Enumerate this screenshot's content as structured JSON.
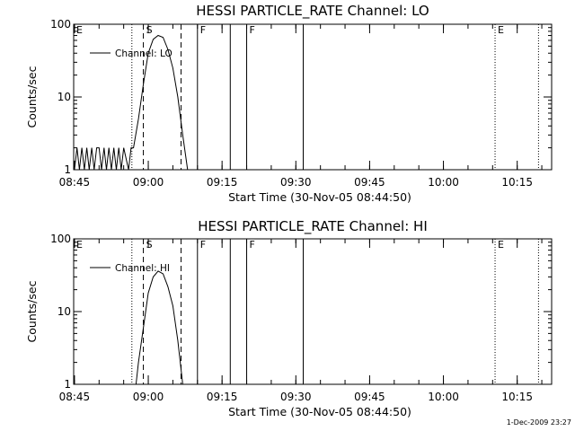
{
  "chart_data": [
    {
      "type": "line",
      "title": "HESSI PARTICLE_RATE Channel: LO",
      "xlabel": "Start Time (30-Nov-05 08:44:50)",
      "ylabel": "Counts/sec",
      "yscale": "log",
      "ylim": [
        1,
        100
      ],
      "xlim": [
        "08:44:50",
        "10:22:00"
      ],
      "x_ticks": [
        "08:45",
        "09:00",
        "09:15",
        "09:30",
        "09:45",
        "10:00",
        "10:15"
      ],
      "y_ticks": [
        "1",
        "10",
        "100"
      ],
      "legend": {
        "entry": "Channel: LO",
        "placement": "top-left"
      },
      "series": [
        {
          "name": "Channel: LO",
          "x": [
            "08:45:00",
            "08:45:30",
            "08:46:00",
            "08:46:30",
            "08:47:00",
            "08:47:30",
            "08:48:00",
            "08:48:30",
            "08:49:00",
            "08:49:30",
            "08:50:00",
            "08:50:30",
            "08:51:00",
            "08:51:30",
            "08:52:00",
            "08:52:30",
            "08:53:00",
            "08:53:30",
            "08:54:00",
            "08:54:30",
            "08:55:00",
            "08:56:00",
            "08:56:30",
            "08:57:00",
            "08:58:00",
            "08:59:00",
            "09:00:00",
            "09:01:00",
            "09:02:00",
            "09:03:00",
            "09:04:00",
            "09:05:00",
            "09:06:00",
            "09:07:00",
            "09:08:00"
          ],
          "y": [
            1,
            2,
            1,
            2,
            1,
            2,
            1,
            2,
            1,
            2,
            2,
            1,
            2,
            1,
            2,
            1,
            2,
            1,
            2,
            1,
            2,
            1,
            2,
            2,
            5,
            15,
            40,
            62,
            70,
            66,
            45,
            25,
            10,
            3,
            1
          ]
        }
      ],
      "markers": [
        {
          "label": "E",
          "time": "08:44:50",
          "style": "dotted"
        },
        {
          "label": "",
          "time": "08:56:40",
          "style": "dotted"
        },
        {
          "label": "S",
          "time": "08:59:00",
          "style": "dashed"
        },
        {
          "label": "",
          "time": "09:06:40",
          "style": "dashed"
        },
        {
          "label": "F",
          "time": "09:10:00",
          "style": "solid"
        },
        {
          "label": "",
          "time": "09:16:40",
          "style": "solid"
        },
        {
          "label": "F",
          "time": "09:20:00",
          "style": "solid"
        },
        {
          "label": "",
          "time": "09:31:30",
          "style": "solid"
        },
        {
          "label": "E",
          "time": "10:10:30",
          "style": "dotted"
        },
        {
          "label": "",
          "time": "10:19:20",
          "style": "dotted"
        }
      ]
    },
    {
      "type": "line",
      "title": "HESSI PARTICLE_RATE Channel: HI",
      "xlabel": "Start Time (30-Nov-05 08:44:50)",
      "ylabel": "Counts/sec",
      "yscale": "log",
      "ylim": [
        1,
        100
      ],
      "xlim": [
        "08:44:50",
        "10:22:00"
      ],
      "x_ticks": [
        "08:45",
        "09:00",
        "09:15",
        "09:30",
        "09:45",
        "10:00",
        "10:15"
      ],
      "y_ticks": [
        "1",
        "10",
        "100"
      ],
      "legend": {
        "entry": "Channel: HI",
        "placement": "top-left"
      },
      "series": [
        {
          "name": "Channel: HI",
          "x": [
            "08:57:30",
            "08:58:00",
            "08:59:00",
            "09:00:00",
            "09:01:00",
            "09:02:00",
            "09:03:00",
            "09:04:00",
            "09:05:00",
            "09:06:00",
            "09:07:00"
          ],
          "y": [
            1,
            2,
            6,
            18,
            30,
            36,
            33,
            22,
            12,
            4,
            1
          ]
        }
      ],
      "markers": [
        {
          "label": "E",
          "time": "08:44:50",
          "style": "dotted"
        },
        {
          "label": "",
          "time": "08:56:40",
          "style": "dotted"
        },
        {
          "label": "S",
          "time": "08:59:00",
          "style": "dashed"
        },
        {
          "label": "",
          "time": "09:06:40",
          "style": "dashed"
        },
        {
          "label": "F",
          "time": "09:10:00",
          "style": "solid"
        },
        {
          "label": "",
          "time": "09:16:40",
          "style": "solid"
        },
        {
          "label": "F",
          "time": "09:20:00",
          "style": "solid"
        },
        {
          "label": "",
          "time": "09:31:30",
          "style": "solid"
        },
        {
          "label": "E",
          "time": "10:10:30",
          "style": "dotted"
        },
        {
          "label": "",
          "time": "10:19:20",
          "style": "dotted"
        }
      ]
    }
  ],
  "footer": {
    "timestamp": "1-Dec-2009 23:27"
  }
}
